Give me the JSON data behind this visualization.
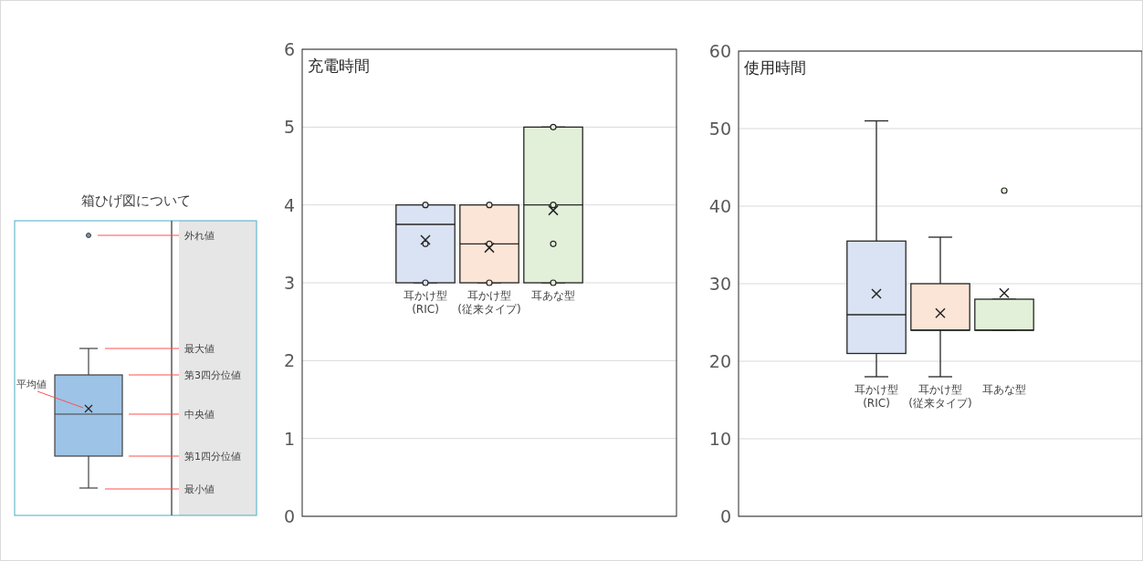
{
  "chart_data": [
    {
      "type": "other",
      "title": "箱ひげ図について",
      "annotations": [
        "外れ値",
        "最大値",
        "第3四分位値",
        "中央値",
        "第1四分位値",
        "最小値",
        "平均値"
      ]
    },
    {
      "type": "box",
      "title": "充電時間",
      "categories": [
        "耳かけ型\n(RIC)",
        "耳かけ型\n(従来タイプ)",
        "耳あな型"
      ],
      "colors": [
        "#dae3f3",
        "#fbe5d6",
        "#e2f0d9"
      ],
      "boxes": [
        {
          "low": 3,
          "q1": 3,
          "median": 3.75,
          "q3": 4,
          "high": 4,
          "mean": 3.55
        },
        {
          "low": 3,
          "q1": 3,
          "median": 3.5,
          "q3": 4,
          "high": 4,
          "mean": 3.45
        },
        {
          "low": 3,
          "q1": 3,
          "median": 4,
          "q3": 5,
          "high": 5,
          "mean": 3.93
        }
      ],
      "series": [
        {
          "type": "scatter",
          "x": [
            "耳かけ型\n(RIC)",
            "耳かけ型\n(RIC)",
            "耳かけ型\n(RIC)",
            "耳かけ型\n(従来タイプ)",
            "耳かけ型\n(従来タイプ)",
            "耳かけ型\n(従来タイプ)",
            "耳あな型",
            "耳あな型",
            "耳あな型",
            "耳あな型"
          ],
          "values": [
            3,
            3.5,
            4,
            3,
            3.5,
            4,
            3,
            3.5,
            4,
            5
          ],
          "colors": [
            "#dae3f3",
            "#dae3f3",
            "#dae3f3",
            "#fbe5d6",
            "#fbe5d6",
            "#fbe5d6",
            "#e2f0d9",
            "#e2f0d9",
            "#e2f0d9",
            "#e2f0d9"
          ]
        }
      ],
      "ylim": [
        0,
        6
      ],
      "yticks": [
        0,
        1,
        2,
        3,
        4,
        5,
        6
      ],
      "grid": "y"
    },
    {
      "type": "box",
      "title": "使用時間",
      "categories": [
        "耳かけ型\n(RIC)",
        "耳かけ型\n(従来タイプ)",
        "耳あな型"
      ],
      "colors": [
        "#dae3f3",
        "#fbe5d6",
        "#e2f0d9"
      ],
      "boxes": [
        {
          "low": 18,
          "q1": 21,
          "median": 26,
          "q3": 35.5,
          "high": 51,
          "mean": 28.7
        },
        {
          "low": 18,
          "q1": 24,
          "median": 24,
          "q3": 30,
          "high": 36,
          "mean": 26.2
        },
        {
          "low": 24,
          "q1": 24,
          "median": 24,
          "q3": 28,
          "high": 28,
          "mean": 28.8,
          "outliers": [
            42
          ]
        }
      ],
      "ylim": [
        0,
        60
      ],
      "yticks": [
        0,
        10,
        20,
        30,
        40,
        50,
        60
      ],
      "grid": "y"
    }
  ]
}
